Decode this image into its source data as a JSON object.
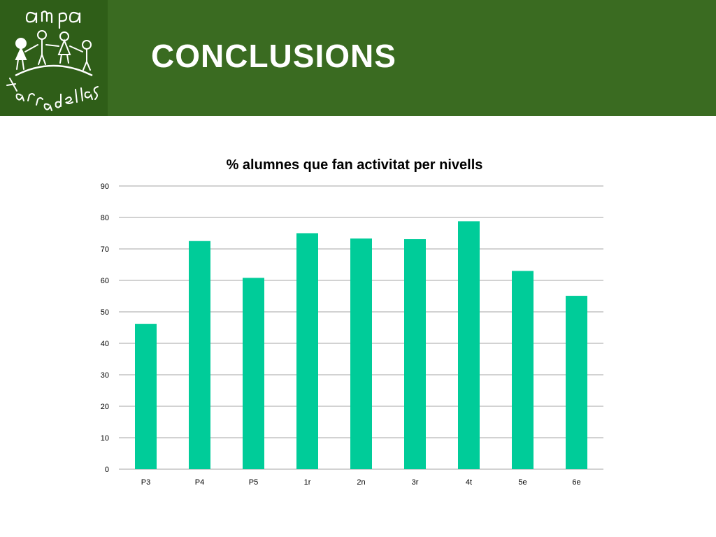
{
  "slide": {
    "title": "CONCLUSIONS",
    "logo": {
      "icon": "ampa-tarradellas-logo",
      "text_top": "ampa",
      "text_bottom": "tarradellas"
    }
  },
  "colors": {
    "header": "#3a6b21",
    "logo_bg": "#2f5e18",
    "bar": "#00cc99",
    "grid": "#a6a6a6"
  },
  "chart_data": {
    "type": "bar",
    "title": "% alumnes que fan activitat per nivells",
    "xlabel": "",
    "ylabel": "",
    "categories": [
      "P3",
      "P4",
      "P5",
      "1r",
      "2n",
      "3r",
      "4t",
      "5e",
      "6e"
    ],
    "values": [
      46.2,
      72.5,
      60.8,
      75.0,
      73.3,
      73.1,
      78.8,
      63.0,
      55.1
    ],
    "ylim": [
      0,
      90
    ],
    "yticks": [
      0,
      10,
      20,
      30,
      40,
      50,
      60,
      70,
      80,
      90
    ],
    "grid": true,
    "legend": "none"
  }
}
